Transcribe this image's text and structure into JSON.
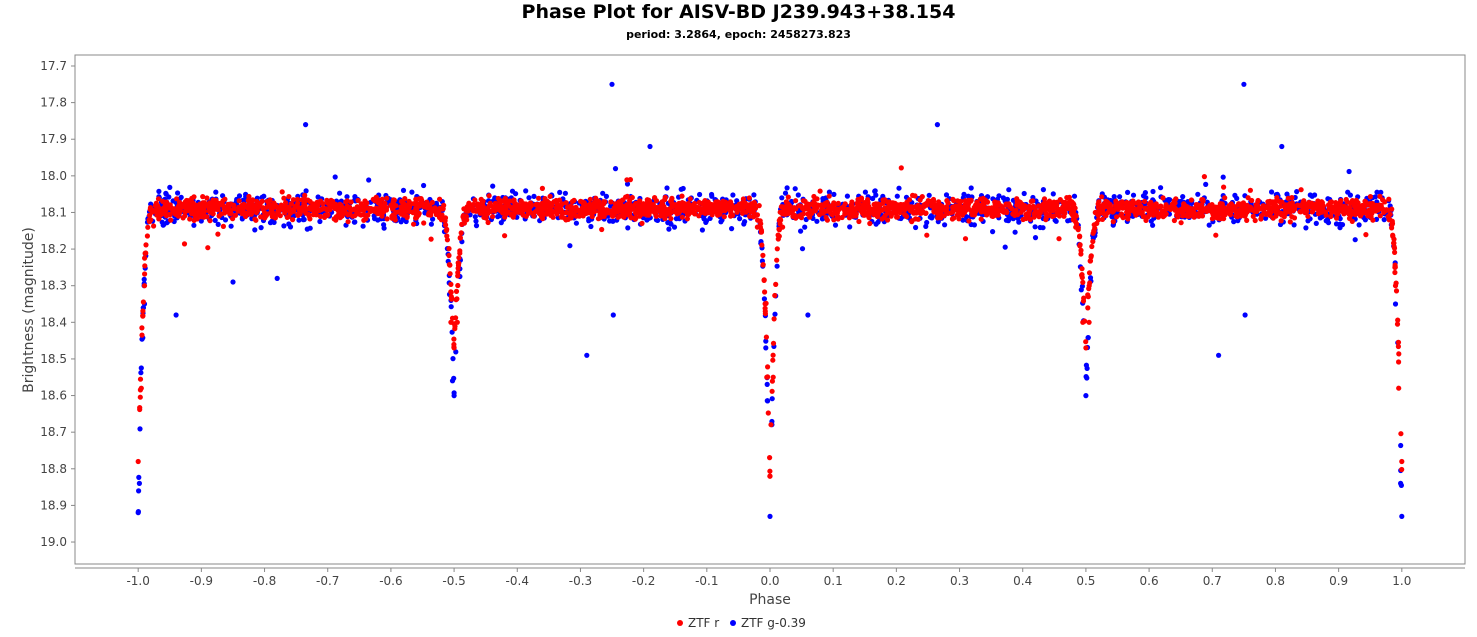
{
  "chart_data": {
    "type": "scatter",
    "title": "Phase Plot for AISV-BD J239.943+38.154",
    "subtitle": "period: 3.2864, epoch: 2458273.823",
    "xlabel": "Phase",
    "ylabel": "Brightness (magnitude)",
    "xlim": [
      -1.1,
      1.1
    ],
    "ylim": [
      17.67,
      19.06
    ],
    "y_inverted": true,
    "x_ticks": [
      "-1.0",
      "-0.9",
      "-0.8",
      "-0.7",
      "-0.6",
      "-0.5",
      "-0.4",
      "-0.3",
      "-0.2",
      "-0.1",
      "0.0",
      "0.1",
      "0.2",
      "0.3",
      "0.4",
      "0.5",
      "0.6",
      "0.7",
      "0.8",
      "0.9",
      "1.0"
    ],
    "y_ticks": [
      "17.7",
      "17.8",
      "17.9",
      "18.0",
      "18.1",
      "18.2",
      "18.3",
      "18.4",
      "18.5",
      "18.6",
      "18.7",
      "18.8",
      "18.9",
      "19.0"
    ],
    "grid": false,
    "legend_position": "bottom-center",
    "series": [
      {
        "name": "ZTF r",
        "color": "#ff0000",
        "baseline_mag": 18.09,
        "primary_eclipse": {
          "phase": 0.0,
          "depth_mag": 18.82
        },
        "secondary_eclipse": {
          "phase": 0.5,
          "depth_mag": 18.47
        },
        "points": [
          [
            -1.0,
            18.78
          ],
          [
            -0.995,
            18.58
          ],
          [
            -0.99,
            18.3
          ],
          [
            -0.98,
            18.12
          ],
          [
            -0.9,
            18.08
          ],
          [
            -0.8,
            18.1
          ],
          [
            -0.7,
            18.09
          ],
          [
            -0.6,
            18.08
          ],
          [
            -0.52,
            18.12
          ],
          [
            -0.505,
            18.4
          ],
          [
            -0.5,
            18.47
          ],
          [
            -0.495,
            18.4
          ],
          [
            -0.48,
            18.12
          ],
          [
            -0.4,
            18.09
          ],
          [
            -0.3,
            18.1
          ],
          [
            -0.2,
            18.08
          ],
          [
            -0.1,
            18.09
          ],
          [
            -0.02,
            18.14
          ],
          [
            -0.005,
            18.55
          ],
          [
            0.0,
            18.82
          ],
          [
            0.005,
            18.55
          ],
          [
            0.02,
            18.14
          ],
          [
            0.1,
            18.09
          ],
          [
            0.2,
            18.1
          ],
          [
            0.3,
            18.08
          ],
          [
            0.4,
            18.09
          ],
          [
            0.48,
            18.12
          ],
          [
            0.495,
            18.4
          ],
          [
            0.5,
            18.47
          ],
          [
            0.505,
            18.4
          ],
          [
            0.52,
            18.12
          ],
          [
            0.6,
            18.09
          ],
          [
            0.7,
            18.1
          ],
          [
            0.8,
            18.08
          ],
          [
            0.9,
            18.09
          ],
          [
            0.98,
            18.12
          ],
          [
            0.99,
            18.3
          ],
          [
            0.995,
            18.58
          ],
          [
            1.0,
            18.78
          ]
        ]
      },
      {
        "name": "ZTF g-0.39",
        "color": "#0000ff",
        "baseline_mag": 18.09,
        "primary_eclipse": {
          "phase": 0.0,
          "depth_mag": 18.92
        },
        "secondary_eclipse": {
          "phase": 0.5,
          "depth_mag": 18.6
        },
        "points": [
          [
            -1.0,
            18.92
          ],
          [
            -0.998,
            18.84
          ],
          [
            -0.99,
            18.35
          ],
          [
            -0.94,
            18.38
          ],
          [
            -0.85,
            18.29
          ],
          [
            -0.78,
            18.28
          ],
          [
            -0.735,
            17.86
          ],
          [
            -0.5,
            18.6
          ],
          [
            -0.29,
            18.49
          ],
          [
            -0.25,
            17.75
          ],
          [
            -0.248,
            18.38
          ],
          [
            -0.19,
            17.92
          ],
          [
            0.0,
            18.93
          ],
          [
            0.06,
            18.38
          ],
          [
            0.265,
            17.86
          ],
          [
            0.5,
            18.6
          ],
          [
            0.71,
            18.49
          ],
          [
            0.75,
            17.75
          ],
          [
            0.752,
            18.38
          ],
          [
            0.81,
            17.92
          ],
          [
            0.99,
            18.35
          ],
          [
            0.998,
            18.84
          ],
          [
            1.0,
            18.93
          ]
        ]
      }
    ]
  }
}
